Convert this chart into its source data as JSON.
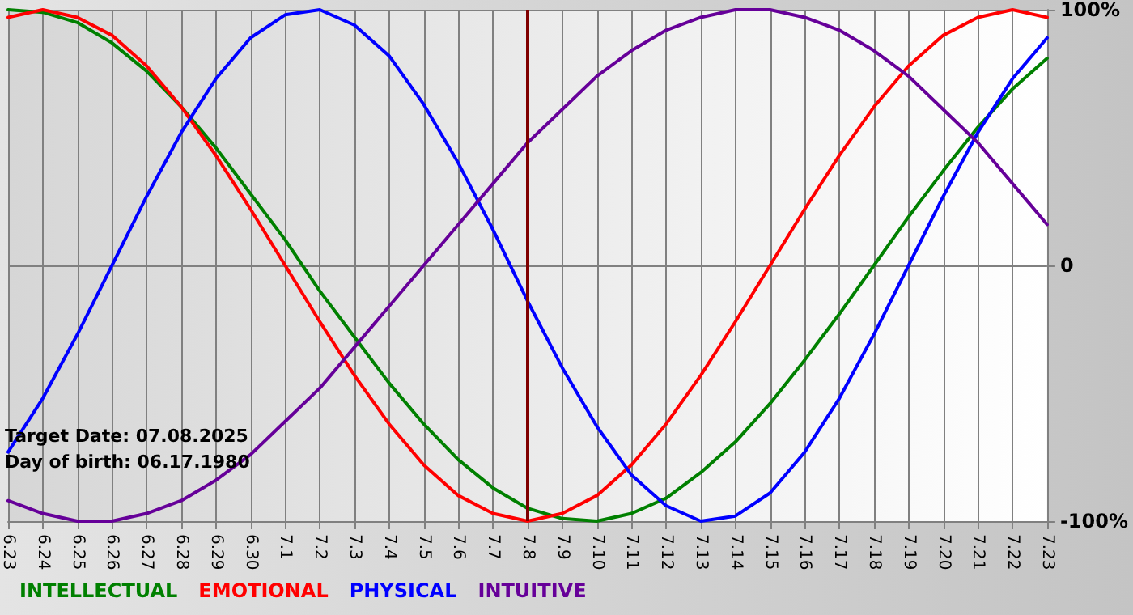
{
  "chart_data": {
    "type": "line",
    "categories": [
      "6.23",
      "6.24",
      "6.25",
      "6.26",
      "6.27",
      "6.28",
      "6.29",
      "6.30",
      "7.1",
      "7.2",
      "7.3",
      "7.4",
      "7.5",
      "7.6",
      "7.7",
      "7.8",
      "7.9",
      "7.10",
      "7.11",
      "7.12",
      "7.13",
      "7.14",
      "7.15",
      "7.16",
      "7.17",
      "7.18",
      "7.19",
      "7.20",
      "7.21",
      "7.22",
      "7.23"
    ],
    "series": [
      {
        "name": "INTELLECTUAL",
        "color": "#008000",
        "values": [
          100,
          99,
          95,
          87,
          76,
          62,
          46,
          28,
          10,
          -10,
          -28,
          -46,
          -62,
          -76,
          -87,
          -95,
          -99,
          -100,
          -97,
          -91,
          -81,
          -69,
          -54,
          -37,
          -19,
          0,
          19,
          37,
          54,
          69,
          81
        ]
      },
      {
        "name": "EMOTIONAL",
        "color": "#ff0000",
        "values": [
          97,
          100,
          97,
          90,
          78,
          62,
          43,
          22,
          0,
          -22,
          -43,
          -62,
          -78,
          -90,
          -97,
          -100,
          -97,
          -90,
          -78,
          -62,
          -43,
          -22,
          0,
          22,
          43,
          62,
          78,
          90,
          97,
          100,
          97
        ]
      },
      {
        "name": "PHYSICAL",
        "color": "#0000ff",
        "values": [
          -73,
          -52,
          -27,
          0,
          27,
          52,
          73,
          89,
          98,
          100,
          94,
          82,
          63,
          40,
          14,
          -14,
          -40,
          -63,
          -82,
          -94,
          -100,
          -98,
          -89,
          -73,
          -52,
          -27,
          0,
          27,
          52,
          73,
          89
        ]
      },
      {
        "name": "INTUITIVE",
        "color": "#660099",
        "values": [
          -92,
          -97,
          -100,
          -100,
          -97,
          -92,
          -84,
          -74,
          -61,
          -48,
          -32,
          -16,
          0,
          16,
          32,
          48,
          61,
          74,
          84,
          92,
          97,
          100,
          100,
          97,
          92,
          84,
          74,
          61,
          48,
          32,
          16
        ]
      }
    ],
    "ylim": [
      -100,
      100
    ],
    "yticks": [
      {
        "value": -100,
        "label": "-100%"
      },
      0,
      {
        "value": 100,
        "label": "100%"
      }
    ],
    "ref_lines": [
      {
        "axis": "x",
        "value": "7.8",
        "color": "#800000"
      }
    ],
    "annotations": [
      "Target Date: 07.08.2025",
      "Day of birth: 06.17.1980"
    ],
    "grid": true,
    "legend": "bottom left",
    "marker": "none"
  }
}
